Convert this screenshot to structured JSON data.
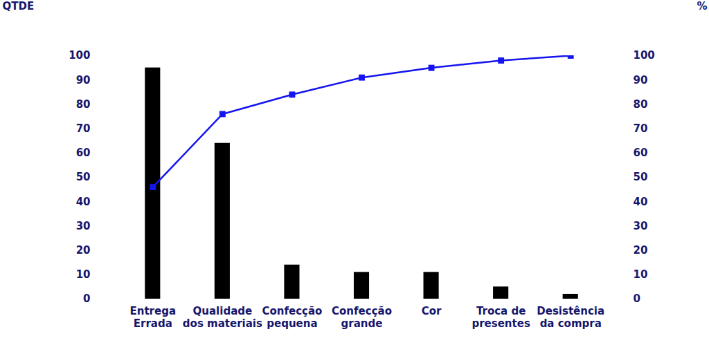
{
  "chart_data": {
    "type": "bar",
    "categories": [
      "Entrega\nErrada",
      "Qualidade\ndos materiais",
      "Confecção\npequena",
      "Confecção\ngrande",
      "Cor",
      "Troca de\npresentes",
      "Desistência\nda compra"
    ],
    "ylabel": "QTDE",
    "ylim": [
      0,
      100
    ],
    "yticks": [
      0,
      10,
      20,
      30,
      40,
      50,
      60,
      70,
      80,
      90,
      100
    ],
    "y2label": "%",
    "y2lim": [
      0,
      100
    ],
    "y2ticks": [
      0,
      10,
      20,
      30,
      40,
      50,
      60,
      70,
      80,
      90,
      100
    ],
    "grid": false,
    "series": [
      {
        "type": "bar",
        "color": "#000000",
        "values": [
          95,
          64,
          14,
          11,
          11,
          5,
          2
        ]
      },
      {
        "type": "line",
        "axis": "y2",
        "color": "#1414f0",
        "marker": "square",
        "values": [
          46,
          76,
          84,
          91,
          95,
          98,
          100
        ]
      }
    ]
  }
}
